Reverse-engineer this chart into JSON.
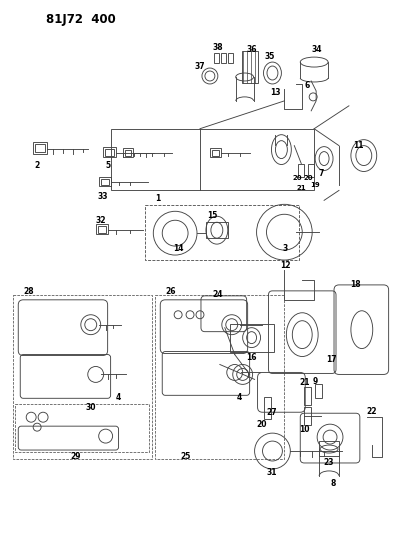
{
  "title": "81J72 400",
  "bg_color": "#ffffff",
  "fig_width": 3.93,
  "fig_height": 5.33,
  "dpi": 100,
  "line_color": "#444444",
  "lw": 0.65
}
